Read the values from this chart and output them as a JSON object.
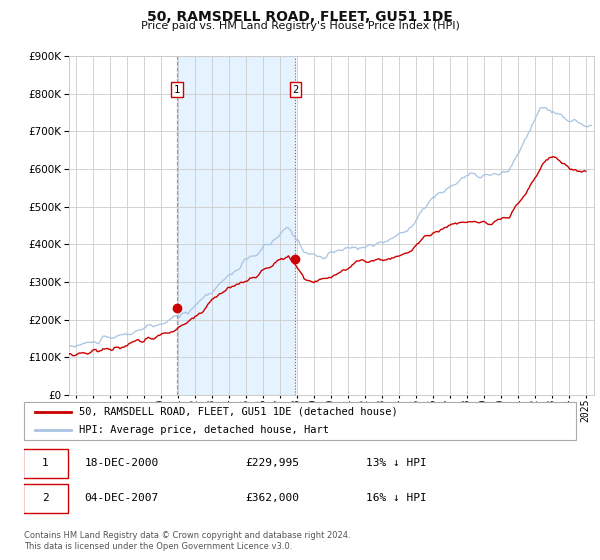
{
  "title": "50, RAMSDELL ROAD, FLEET, GU51 1DE",
  "subtitle": "Price paid vs. HM Land Registry's House Price Index (HPI)",
  "background_color": "#ffffff",
  "grid_color": "#cccccc",
  "hpi_color": "#a8c4e0",
  "price_color": "#cc0000",
  "marker_color": "#cc0000",
  "shade_color": "#ddeeff",
  "transaction1_date_num": 2000.96,
  "transaction1_price": 229995,
  "transaction2_date_num": 2007.92,
  "transaction2_price": 362000,
  "legend_line1": "50, RAMSDELL ROAD, FLEET, GU51 1DE (detached house)",
  "legend_line2": "HPI: Average price, detached house, Hart",
  "table_row1": [
    "1",
    "18-DEC-2000",
    "£229,995",
    "13% ↓ HPI"
  ],
  "table_row2": [
    "2",
    "04-DEC-2007",
    "£362,000",
    "16% ↓ HPI"
  ],
  "footnote1": "Contains HM Land Registry data © Crown copyright and database right 2024.",
  "footnote2": "This data is licensed under the Open Government Licence v3.0.",
  "ylim": [
    0,
    900000
  ],
  "xlim_start": 1994.6,
  "xlim_end": 2025.5
}
